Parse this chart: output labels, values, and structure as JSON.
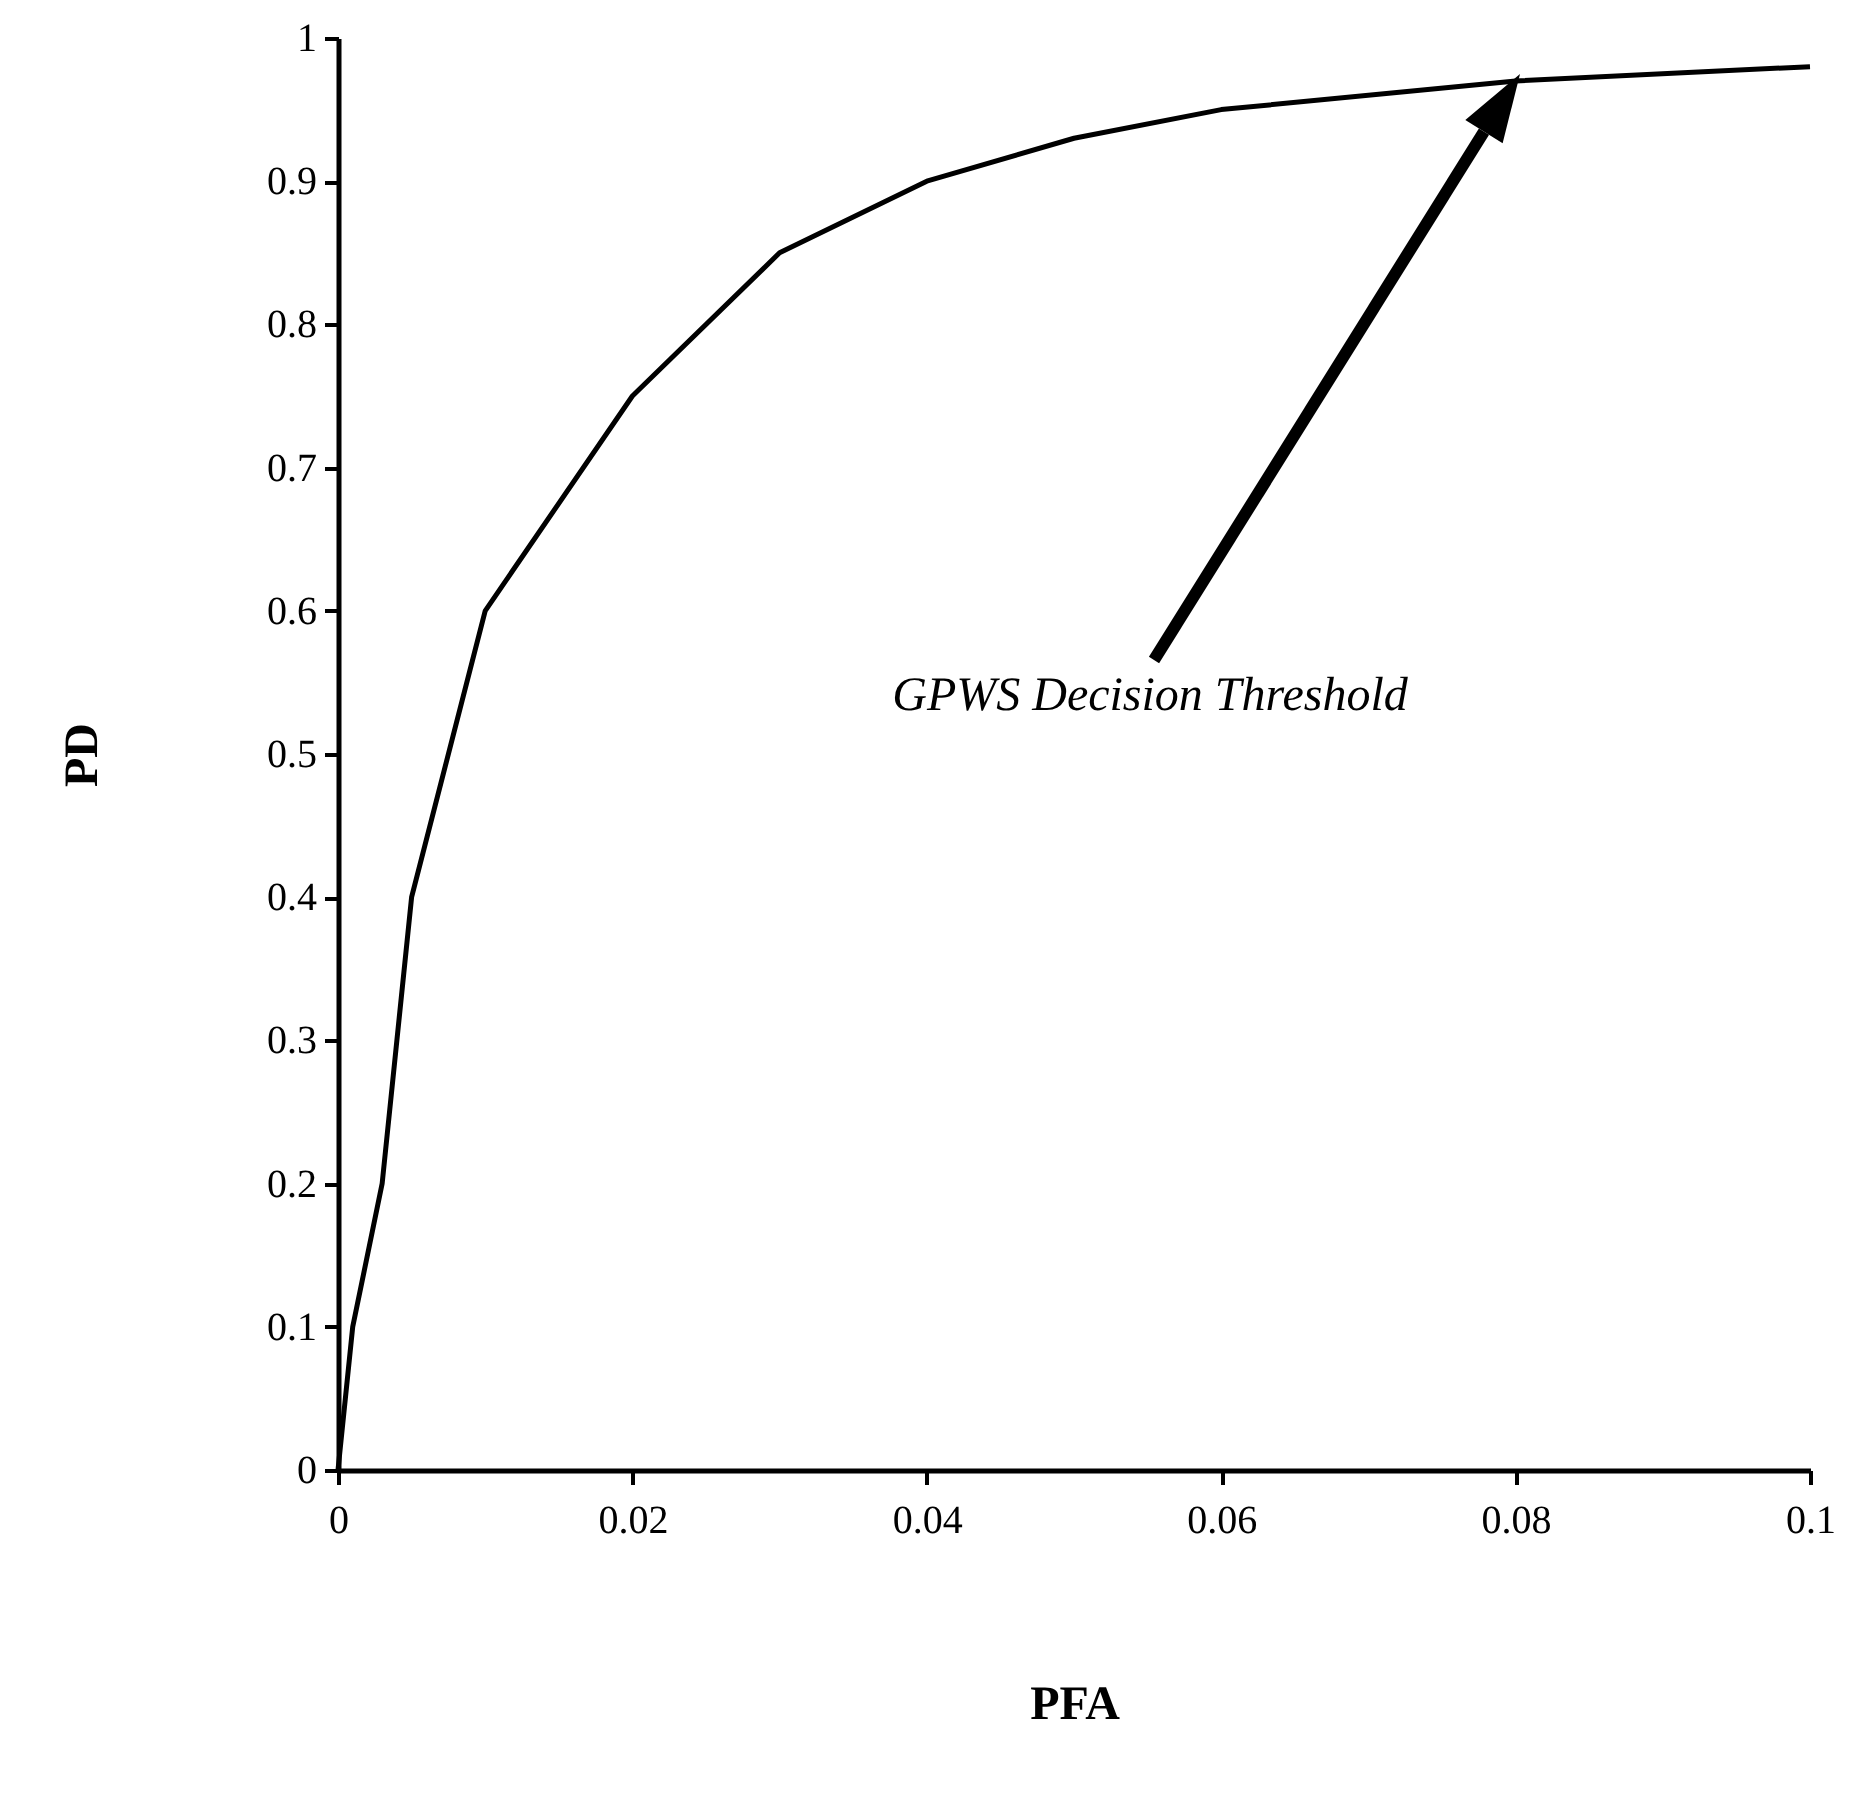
{
  "chart_data": {
    "type": "line",
    "xlabel": "PFA",
    "ylabel": "PD",
    "x": [
      0,
      0.001,
      0.003,
      0.005,
      0.01,
      0.02,
      0.03,
      0.04,
      0.05,
      0.06,
      0.08,
      0.1
    ],
    "values": [
      0,
      0.1,
      0.2,
      0.4,
      0.6,
      0.75,
      0.85,
      0.9,
      0.93,
      0.95,
      0.97,
      0.98
    ],
    "color": "#000000",
    "xlim": [
      0,
      0.1
    ],
    "xticks": [
      0,
      0.02,
      0.04,
      0.06,
      0.08,
      0.1
    ],
    "ylim": [
      0,
      1
    ],
    "yticks": [
      0,
      0.1,
      0.2,
      0.3,
      0.4,
      0.5,
      0.6,
      0.7,
      0.8,
      0.9,
      1
    ],
    "grid": false,
    "marker": "none",
    "line_style": "solid",
    "annotations": [
      "GPWS Decision Threshold"
    ]
  }
}
